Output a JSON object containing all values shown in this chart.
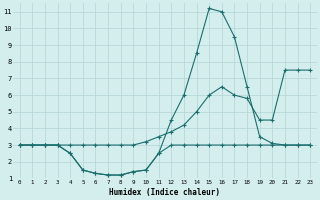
{
  "xlabel": "Humidex (Indice chaleur)",
  "bg_color": "#d4eeee",
  "grid_color": "#b8d8d8",
  "line_color": "#1a6e6e",
  "xlim": [
    -0.5,
    23.5
  ],
  "ylim": [
    1,
    11.5
  ],
  "xticks": [
    0,
    1,
    2,
    3,
    4,
    5,
    6,
    7,
    8,
    9,
    10,
    11,
    12,
    13,
    14,
    15,
    16,
    17,
    18,
    19,
    20,
    21,
    22,
    23
  ],
  "yticks": [
    1,
    2,
    3,
    4,
    5,
    6,
    7,
    8,
    9,
    10,
    11
  ],
  "series": [
    {
      "x": [
        0,
        1,
        2,
        3,
        4,
        5,
        6,
        7,
        8,
        9,
        10,
        11,
        12,
        13,
        14,
        15,
        16,
        17,
        18,
        19,
        20,
        21,
        22,
        23
      ],
      "y": [
        3.0,
        3.0,
        3.0,
        3.0,
        2.5,
        1.5,
        1.3,
        1.2,
        1.2,
        1.4,
        1.5,
        2.5,
        3.0,
        3.0,
        3.0,
        3.0,
        3.0,
        3.0,
        3.0,
        3.0,
        3.0,
        3.0,
        3.0,
        3.0
      ]
    },
    {
      "x": [
        0,
        1,
        2,
        3,
        4,
        5,
        6,
        7,
        8,
        9,
        10,
        11,
        12,
        13,
        14,
        15,
        16,
        17,
        18,
        19,
        20,
        21,
        22,
        23
      ],
      "y": [
        3.0,
        3.0,
        3.0,
        3.0,
        2.5,
        1.5,
        1.3,
        1.2,
        1.2,
        1.4,
        1.5,
        2.5,
        4.5,
        6.0,
        8.5,
        11.2,
        11.0,
        9.5,
        6.5,
        3.5,
        3.1,
        3.0,
        3.0,
        3.0
      ]
    },
    {
      "x": [
        0,
        1,
        2,
        3,
        4,
        5,
        6,
        7,
        8,
        9,
        10,
        11,
        12,
        13,
        14,
        15,
        16,
        17,
        18,
        19,
        20,
        21,
        22,
        23
      ],
      "y": [
        3.0,
        3.0,
        3.0,
        3.0,
        3.0,
        3.0,
        3.0,
        3.0,
        3.0,
        3.0,
        3.2,
        3.5,
        3.8,
        4.2,
        5.0,
        6.0,
        6.5,
        6.0,
        5.8,
        4.5,
        4.5,
        7.5,
        7.5,
        7.5
      ]
    }
  ]
}
